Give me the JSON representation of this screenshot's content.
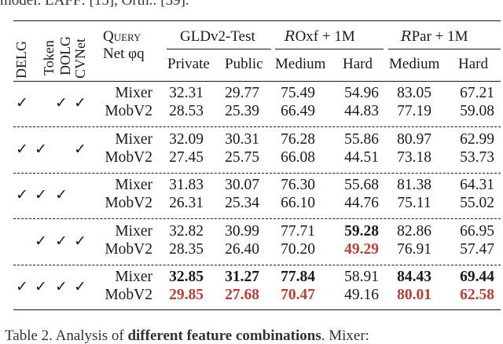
{
  "top_text": "model. LAFF: [15], Orth.: [39].",
  "table": {
    "method_headers": [
      "DELG",
      "Token",
      "DOLG",
      "CVNet"
    ],
    "query_net_label": "Query",
    "query_net_label2": "Net φq",
    "group_headers": [
      {
        "prefix": "",
        "name": "GLDv2-Test"
      },
      {
        "prefix": "R",
        "name": "Oxf + 1M"
      },
      {
        "prefix": "R",
        "name": "Par + 1M"
      }
    ],
    "sub_headers": [
      "Private",
      "Public",
      "Medium",
      "Hard",
      "Medium",
      "Hard"
    ],
    "groups": [
      {
        "checks": [
          true,
          false,
          true,
          true
        ],
        "rows": [
          {
            "net": "Mixer",
            "values": [
              "32.31",
              "29.77",
              "75.49",
              "54.96",
              "83.05",
              "67.21"
            ],
            "style": [
              "",
              "",
              "",
              "",
              "",
              ""
            ]
          },
          {
            "net": "MobV2",
            "values": [
              "28.53",
              "25.39",
              "66.49",
              "44.83",
              "77.19",
              "59.08"
            ],
            "style": [
              "",
              "",
              "",
              "",
              "",
              ""
            ]
          }
        ]
      },
      {
        "checks": [
          true,
          true,
          false,
          true
        ],
        "rows": [
          {
            "net": "Mixer",
            "values": [
              "32.09",
              "30.31",
              "76.28",
              "55.86",
              "80.97",
              "62.99"
            ],
            "style": [
              "",
              "",
              "",
              "",
              "",
              ""
            ]
          },
          {
            "net": "MobV2",
            "values": [
              "27.45",
              "25.75",
              "66.08",
              "44.51",
              "73.18",
              "53.73"
            ],
            "style": [
              "",
              "",
              "",
              "",
              "",
              ""
            ]
          }
        ]
      },
      {
        "checks": [
          true,
          true,
          true,
          false
        ],
        "rows": [
          {
            "net": "Mixer",
            "values": [
              "31.83",
              "30.07",
              "76.30",
              "55.68",
              "81.38",
              "64.31"
            ],
            "style": [
              "",
              "",
              "",
              "",
              "",
              ""
            ]
          },
          {
            "net": "MobV2",
            "values": [
              "26.31",
              "25.34",
              "66.10",
              "44.76",
              "75.11",
              "55.02"
            ],
            "style": [
              "",
              "",
              "",
              "",
              "",
              ""
            ]
          }
        ]
      },
      {
        "checks": [
          false,
          true,
          true,
          true
        ],
        "rows": [
          {
            "net": "Mixer",
            "values": [
              "32.82",
              "30.99",
              "77.71",
              "59.28",
              "82.86",
              "66.95"
            ],
            "style": [
              "",
              "",
              "",
              "bold",
              "",
              ""
            ]
          },
          {
            "net": "MobV2",
            "values": [
              "28.35",
              "26.40",
              "70.20",
              "49.29",
              "76.91",
              "57.47"
            ],
            "style": [
              "",
              "",
              "",
              "red",
              "",
              ""
            ]
          }
        ]
      },
      {
        "checks": [
          true,
          true,
          true,
          true
        ],
        "rows": [
          {
            "net": "Mixer",
            "values": [
              "32.85",
              "31.27",
              "77.84",
              "58.91",
              "84.43",
              "69.44"
            ],
            "style": [
              "bold",
              "bold",
              "bold",
              "",
              "bold",
              "bold"
            ]
          },
          {
            "net": "MobV2",
            "values": [
              "29.85",
              "27.68",
              "70.47",
              "49.16",
              "80.01",
              "62.58"
            ],
            "style": [
              "red",
              "red",
              "red",
              "",
              "red",
              "red"
            ]
          }
        ]
      }
    ],
    "check_symbol": "✓"
  },
  "caption": {
    "prefix": "Table 2.  Analysis of ",
    "bold": "different feature combinations",
    "suffix": ".  Mixer:"
  },
  "colors": {
    "text": "#1a1a1a",
    "highlight_red": "#b5403a"
  }
}
